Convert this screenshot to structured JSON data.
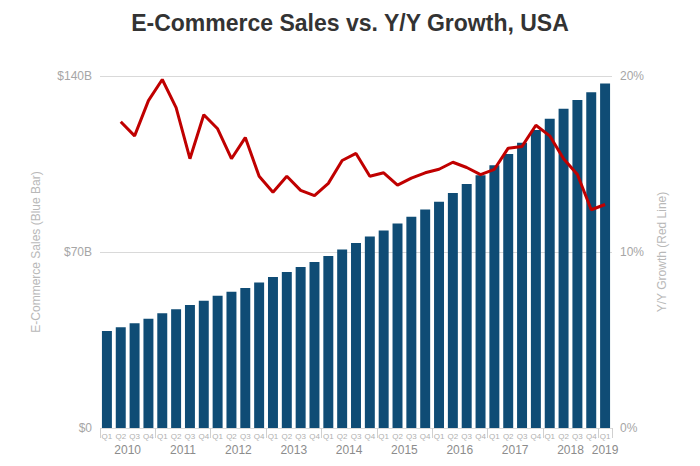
{
  "chart_data": {
    "type": "bar",
    "title": "E-Commerce Sales vs. Y/Y Growth, USA",
    "categories": [
      "Q1",
      "Q2",
      "Q3",
      "Q4",
      "Q1",
      "Q2",
      "Q3",
      "Q4",
      "Q1",
      "Q2",
      "Q3",
      "Q4",
      "Q1",
      "Q2",
      "Q3",
      "Q4",
      "Q1",
      "Q2",
      "Q3",
      "Q4",
      "Q1",
      "Q2",
      "Q3",
      "Q4",
      "Q1",
      "Q2",
      "Q3",
      "Q4",
      "Q1",
      "Q2",
      "Q3",
      "Q4",
      "Q1",
      "Q2",
      "Q3",
      "Q4",
      "Q1"
    ],
    "category_groups": [
      {
        "label": "2010",
        "count": 4
      },
      {
        "label": "2011",
        "count": 4
      },
      {
        "label": "2012",
        "count": 4
      },
      {
        "label": "2013",
        "count": 4
      },
      {
        "label": "2014",
        "count": 4
      },
      {
        "label": "2015",
        "count": 4
      },
      {
        "label": "2016",
        "count": 4
      },
      {
        "label": "2017",
        "count": 4
      },
      {
        "label": "2018",
        "count": 4
      },
      {
        "label": "2019",
        "count": 1
      }
    ],
    "series": [
      {
        "type": "bar",
        "color": "#0f4c75",
        "values": [
          38.6,
          40.1,
          41.7,
          43.5,
          45.6,
          47.2,
          48.9,
          50.6,
          52.6,
          54.2,
          55.7,
          57.9,
          60.1,
          62.0,
          64.0,
          66.0,
          68.4,
          71.0,
          73.6,
          76.2,
          78.6,
          81.3,
          84.0,
          86.9,
          90.0,
          93.5,
          97.0,
          100.5,
          104.5,
          109.0,
          113.5,
          118.5,
          123.0,
          127.0,
          130.5,
          133.5,
          137.0
        ]
      },
      {
        "type": "line",
        "color": "#c00000",
        "axis": "y2",
        "values": [
          null,
          17.4,
          16.6,
          18.6,
          19.8,
          18.2,
          15.3,
          17.8,
          17.0,
          15.3,
          16.5,
          14.3,
          13.4,
          14.3,
          13.5,
          13.2,
          13.9,
          15.2,
          15.6,
          14.3,
          14.5,
          13.8,
          14.2,
          14.5,
          14.7,
          15.1,
          14.8,
          14.4,
          14.7,
          15.9,
          16.0,
          17.2,
          16.6,
          15.3,
          14.4,
          12.4,
          12.7
        ]
      }
    ],
    "ylabel": "E-Commerce Sales (Blue Bar)",
    "y2label": "Y/Y Growth (Red Line)",
    "ylim": [
      0,
      140
    ],
    "yticks": [
      {
        "value": 0,
        "label": "$0"
      },
      {
        "value": 70,
        "label": "$70B"
      },
      {
        "value": 140,
        "label": "$140B"
      }
    ],
    "y2lim": [
      0,
      20
    ],
    "y2ticks": [
      {
        "value": 0,
        "label": "0%"
      },
      {
        "value": 10,
        "label": "10%"
      },
      {
        "value": 20,
        "label": "20%"
      }
    ],
    "grid": true
  }
}
